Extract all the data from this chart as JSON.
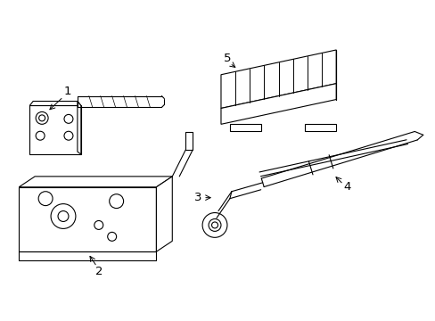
{
  "background_color": "#ffffff",
  "line_color": "#000000",
  "figsize": [
    4.89,
    3.6
  ],
  "dpi": 100,
  "lw": 0.8
}
